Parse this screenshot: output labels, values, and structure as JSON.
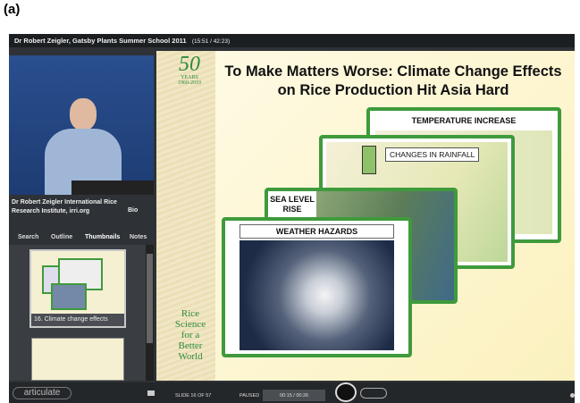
{
  "figure_label": "(a)",
  "window": {
    "title": "Dr Robert Zeigler, Gatsby Plants Summer School 2011",
    "time": "(15:51 / 42:23)"
  },
  "sidebar": {
    "presenter": "Dr Robert Zeigler International Rice Research Institute, irri.org",
    "bio": "Bio",
    "tabs": [
      "Search",
      "Outline",
      "Thumbnails",
      "Notes"
    ],
    "thumbnail_label": "16. Climate change effects"
  },
  "slide": {
    "title": "To Make Matters Worse: Climate Change Effects on Rice Production Hit Asia Hard",
    "logo_top": "50",
    "logo_years": "YEARS",
    "logo_dates": "1960-2010",
    "logo_bottom": "Rice Science for a Better World",
    "cards": [
      "TEMPERATURE INCREASE",
      "CHANGES IN RAINFALL",
      "SEA LEVEL RISE",
      "WEATHER HAZARDS"
    ]
  },
  "controls": {
    "brand": "articulate",
    "slide_count": "SLIDE 16 OF 57",
    "status": "PAUSED",
    "time": "00:15 / 00:26"
  }
}
